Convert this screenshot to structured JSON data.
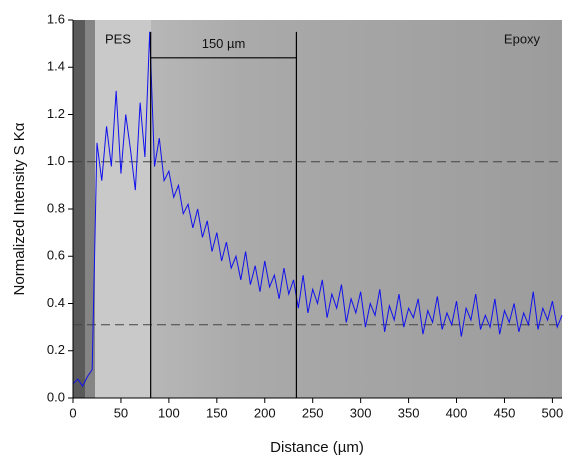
{
  "chart_data": {
    "type": "line",
    "y_label": "Normalized Intensity S Kα",
    "x_label": "Distance (µm)",
    "annotations": [
      "PES",
      "Epoxy",
      "150 µm"
    ],
    "color": "#1010ee",
    "x": [
      0,
      5,
      10,
      15,
      20,
      25,
      30,
      35,
      40,
      45,
      50,
      55,
      60,
      65,
      70,
      75,
      80,
      85,
      90,
      95,
      100,
      105,
      110,
      115,
      120,
      125,
      130,
      135,
      140,
      145,
      150,
      155,
      160,
      165,
      170,
      175,
      180,
      185,
      190,
      195,
      200,
      205,
      210,
      215,
      220,
      225,
      230,
      235,
      240,
      245,
      250,
      255,
      260,
      265,
      270,
      275,
      280,
      285,
      290,
      295,
      300,
      305,
      310,
      315,
      320,
      325,
      330,
      335,
      340,
      345,
      350,
      355,
      360,
      365,
      370,
      375,
      380,
      385,
      390,
      395,
      400,
      405,
      410,
      415,
      420,
      425,
      430,
      435,
      440,
      445,
      450,
      455,
      460,
      465,
      470,
      475,
      480,
      485,
      490,
      495,
      500,
      505,
      510
    ],
    "values": [
      0.06,
      0.08,
      0.05,
      0.09,
      0.12,
      1.08,
      0.92,
      1.15,
      0.98,
      1.3,
      0.95,
      1.2,
      1.05,
      0.88,
      1.25,
      1.02,
      1.55,
      0.98,
      1.1,
      0.92,
      0.96,
      0.85,
      0.9,
      0.78,
      0.82,
      0.72,
      0.8,
      0.68,
      0.75,
      0.62,
      0.7,
      0.58,
      0.66,
      0.55,
      0.6,
      0.5,
      0.62,
      0.48,
      0.56,
      0.45,
      0.58,
      0.47,
      0.52,
      0.42,
      0.55,
      0.44,
      0.5,
      0.38,
      0.52,
      0.36,
      0.46,
      0.4,
      0.5,
      0.34,
      0.44,
      0.38,
      0.48,
      0.32,
      0.42,
      0.36,
      0.45,
      0.3,
      0.4,
      0.35,
      0.46,
      0.28,
      0.39,
      0.33,
      0.44,
      0.3,
      0.38,
      0.34,
      0.42,
      0.27,
      0.37,
      0.32,
      0.43,
      0.29,
      0.36,
      0.31,
      0.41,
      0.26,
      0.38,
      0.33,
      0.44,
      0.29,
      0.35,
      0.3,
      0.42,
      0.27,
      0.37,
      0.32,
      0.4,
      0.28,
      0.36,
      0.31,
      0.45,
      0.29,
      0.38,
      0.33,
      0.41,
      0.3,
      0.35
    ],
    "reference_lines_y": [
      1.0,
      0.31
    ],
    "marker_lines_x": [
      81,
      233
    ],
    "bracket_y": 1.44,
    "xlim": [
      0,
      510
    ],
    "ylim": [
      0,
      1.6
    ],
    "xticks": [
      0,
      50,
      100,
      150,
      200,
      250,
      300,
      350,
      400,
      450,
      500
    ],
    "yticks": [
      {
        "value": 0,
        "label": "0.0"
      },
      0.2,
      0.4,
      0.6,
      0.8,
      {
        "value": 1,
        "label": "1.0"
      },
      1.2,
      1.4,
      1.6
    ]
  }
}
